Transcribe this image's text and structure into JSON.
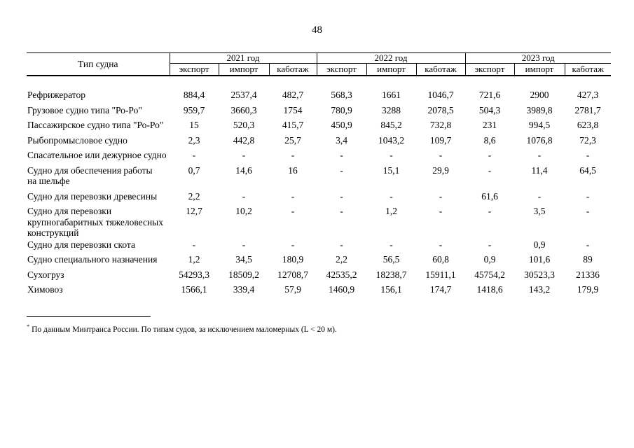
{
  "page": {
    "number": "48"
  },
  "table": {
    "row_header_label": "Тип судна",
    "year_groups": [
      {
        "label": "2021 год"
      },
      {
        "label": "2022 год"
      },
      {
        "label": "2023 год"
      }
    ],
    "sub_columns": [
      "экспорт",
      "импорт",
      "каботаж"
    ],
    "rows": [
      {
        "label": "Рефрижератор",
        "values": [
          "884,4",
          "2537,4",
          "482,7",
          "568,3",
          "1661",
          "1046,7",
          "721,6",
          "2900",
          "427,3"
        ]
      },
      {
        "label": "Грузовое судно типа \"Ро-Ро\"",
        "values": [
          "959,7",
          "3660,3",
          "1754",
          "780,9",
          "3288",
          "2078,5",
          "504,3",
          "3989,8",
          "2781,7"
        ]
      },
      {
        "label": "Пассажирское судно типа \"Ро-Ро\"",
        "values": [
          "15",
          "520,3",
          "415,7",
          "450,9",
          "845,2",
          "732,8",
          "231",
          "994,5",
          "623,8"
        ]
      },
      {
        "label": "Рыбопромысловое судно",
        "values": [
          "2,3",
          "442,8",
          "25,7",
          "3,4",
          "1043,2",
          "109,7",
          "8,6",
          "1076,8",
          "72,3"
        ]
      },
      {
        "label": "Спасательное или дежурное судно",
        "values": [
          "-",
          "-",
          "-",
          "-",
          "-",
          "-",
          "-",
          "-",
          "-"
        ]
      },
      {
        "label": "Судно для обеспечения работы\nна шельфе",
        "values": [
          "0,7",
          "14,6",
          "16",
          "-",
          "15,1",
          "29,9",
          "-",
          "11,4",
          "64,5"
        ]
      },
      {
        "label": "Судно для перевозки древесины",
        "values": [
          "2,2",
          "-",
          "-",
          "-",
          "-",
          "-",
          "61,6",
          "-",
          "-"
        ]
      },
      {
        "label": "Судно для перевозки\nкрупногабаритных тяжеловесных\nконструкций",
        "values": [
          "12,7",
          "10,2",
          "-",
          "-",
          "1,2",
          "-",
          "-",
          "3,5",
          "-"
        ]
      },
      {
        "label": "Судно для перевозки скота",
        "values": [
          "-",
          "-",
          "-",
          "-",
          "-",
          "-",
          "-",
          "0,9",
          "-"
        ]
      },
      {
        "label": "Судно специального назначения",
        "values": [
          "1,2",
          "34,5",
          "180,9",
          "2,2",
          "56,5",
          "60,8",
          "0,9",
          "101,6",
          "89"
        ]
      },
      {
        "label": "Сухогруз",
        "values": [
          "54293,3",
          "18509,2",
          "12708,7",
          "42535,2",
          "18238,7",
          "15911,1",
          "45754,2",
          "30523,3",
          "21336"
        ]
      },
      {
        "label": "Химовоз",
        "values": [
          "1566,1",
          "339,4",
          "57,9",
          "1460,9",
          "156,1",
          "174,7",
          "1418,6",
          "143,2",
          "179,9"
        ]
      }
    ]
  },
  "footnote": {
    "marker": "*",
    "text": "По данным Минтранса России. По типам судов, за исключением маломерных (L < 20 м)."
  }
}
